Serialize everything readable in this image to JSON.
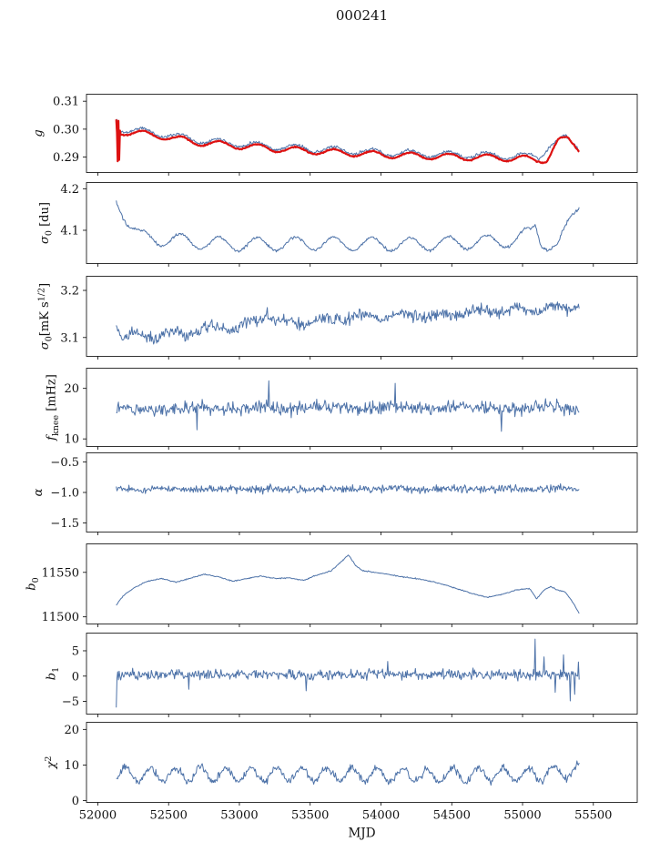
{
  "chart_data": {
    "type": "line",
    "title": "000241",
    "xlabel": "MJD",
    "xlim": [
      51920,
      55810
    ],
    "xticks": [
      52000,
      52500,
      53000,
      53500,
      54000,
      54500,
      55000,
      55500
    ],
    "xtick_labels": [
      "52000",
      "52500",
      "53000",
      "53500",
      "54000",
      "54500",
      "55000",
      "55500"
    ],
    "x_range": [
      52130,
      55400
    ],
    "n_points": 620,
    "colors": {
      "data_line": "#4d72a8",
      "fit_line": "#dd1111",
      "axes": "#000000"
    },
    "panels": [
      {
        "id": "g",
        "ylabel_segments": [
          {
            "t": "g",
            "style": "i"
          }
        ],
        "ylim": [
          0.2845,
          0.3125
        ],
        "yticks": [
          0.29,
          0.3,
          0.31
        ],
        "ytick_labels": [
          "0.29",
          "0.30",
          "0.31"
        ],
        "series": [
          {
            "name": "g-data",
            "color": "#4d72a8",
            "width": 1,
            "noise": 0.00055,
            "seed": 11,
            "anchors": [
              [
                52130,
                0.3005
              ],
              [
                52200,
                0.2998
              ],
              [
                52400,
                0.2988
              ],
              [
                52700,
                0.2962
              ],
              [
                53000,
                0.2948
              ],
              [
                53300,
                0.2936
              ],
              [
                53600,
                0.2927
              ],
              [
                53900,
                0.2919
              ],
              [
                54200,
                0.2913
              ],
              [
                54500,
                0.2909
              ],
              [
                54800,
                0.2906
              ],
              [
                55000,
                0.2903
              ],
              [
                55120,
                0.2903
              ],
              [
                55200,
                0.2946
              ],
              [
                55300,
                0.2968
              ],
              [
                55400,
                0.2935
              ]
            ],
            "osc": {
              "amp": 0.0011,
              "period": 270,
              "phase": 0.5
            },
            "spikes": [
              [
                52133,
                0.3035
              ]
            ]
          },
          {
            "name": "g-fit",
            "color": "#dd1111",
            "width": 2.2,
            "noise": 0.0002,
            "seed": 21,
            "anchors": [
              [
                52130,
                0.2992
              ],
              [
                52200,
                0.2989
              ],
              [
                52400,
                0.2979
              ],
              [
                52700,
                0.2953
              ],
              [
                53000,
                0.294
              ],
              [
                53300,
                0.2928
              ],
              [
                53600,
                0.2919
              ],
              [
                53900,
                0.2911
              ],
              [
                54200,
                0.2905
              ],
              [
                54500,
                0.2901
              ],
              [
                54800,
                0.2898
              ],
              [
                55000,
                0.2895
              ],
              [
                55100,
                0.2888
              ],
              [
                55170,
                0.2893
              ],
              [
                55250,
                0.2958
              ],
              [
                55320,
                0.2962
              ],
              [
                55400,
                0.2928
              ]
            ],
            "osc": {
              "amp": 0.0011,
              "period": 270,
              "phase": 0.4
            },
            "spikes": [
              [
                52131,
                0.3035
              ],
              [
                52138,
                0.2885
              ],
              [
                52145,
                0.303
              ],
              [
                52152,
                0.289
              ],
              [
                52159,
                0.2995
              ]
            ]
          }
        ]
      },
      {
        "id": "sigma0-du",
        "ylabel_segments": [
          {
            "t": "σ",
            "style": "i"
          },
          {
            "t": "0",
            "style": "sub"
          },
          {
            "t": " [du]"
          }
        ],
        "ylim": [
          4.02,
          4.215
        ],
        "yticks": [
          4.1,
          4.2
        ],
        "ytick_labels": [
          "4.1",
          "4.2"
        ],
        "series": [
          {
            "name": "sigma0-du",
            "color": "#4d72a8",
            "width": 1,
            "noise": 0.0035,
            "seed": 31,
            "anchors": [
              [
                52130,
                4.175
              ],
              [
                52170,
                4.15
              ],
              [
                52230,
                4.11
              ],
              [
                52300,
                4.085
              ],
              [
                52400,
                4.08
              ],
              [
                52550,
                4.077
              ],
              [
                52750,
                4.07
              ],
              [
                53000,
                4.066
              ],
              [
                53300,
                4.067
              ],
              [
                53600,
                4.068
              ],
              [
                53900,
                4.067
              ],
              [
                54200,
                4.066
              ],
              [
                54500,
                4.069
              ],
              [
                54800,
                4.073
              ],
              [
                54950,
                4.076
              ],
              [
                55060,
                4.095
              ],
              [
                55090,
                4.115
              ],
              [
                55130,
                4.075
              ],
              [
                55200,
                4.06
              ],
              [
                55250,
                4.058
              ],
              [
                55300,
                4.095
              ],
              [
                55340,
                4.13
              ],
              [
                55400,
                4.168
              ]
            ],
            "osc": {
              "amp": 0.016,
              "period": 270,
              "phase": 0.5
            },
            "spikes": []
          }
        ]
      },
      {
        "id": "sigma0-mks",
        "ylabel_segments": [
          {
            "t": "σ",
            "style": "i"
          },
          {
            "t": "0",
            "style": "sub"
          },
          {
            "t": "[mK s"
          },
          {
            "t": "1/2",
            "style": "sup"
          },
          {
            "t": "]"
          }
        ],
        "ylim": [
          3.06,
          3.23
        ],
        "yticks": [
          3.1,
          3.2
        ],
        "ytick_labels": [
          "3.1",
          "3.2"
        ],
        "series": [
          {
            "name": "sigma0-mks",
            "color": "#4d72a8",
            "width": 1,
            "noise": 0.013,
            "seed": 41,
            "anchors": [
              [
                52130,
                3.125
              ],
              [
                52180,
                3.1
              ],
              [
                52250,
                3.105
              ],
              [
                52400,
                3.103
              ],
              [
                52600,
                3.11
              ],
              [
                52800,
                3.118
              ],
              [
                53000,
                3.122
              ],
              [
                53150,
                3.14
              ],
              [
                53200,
                3.155
              ],
              [
                53250,
                3.135
              ],
              [
                53400,
                3.128
              ],
              [
                53600,
                3.138
              ],
              [
                53800,
                3.142
              ],
              [
                54000,
                3.145
              ],
              [
                54200,
                3.148
              ],
              [
                54400,
                3.147
              ],
              [
                54600,
                3.152
              ],
              [
                54800,
                3.158
              ],
              [
                55000,
                3.158
              ],
              [
                55200,
                3.162
              ],
              [
                55400,
                3.168
              ]
            ],
            "osc": {
              "amp": 0.006,
              "period": 270,
              "phase": 2.0
            },
            "spikes": []
          }
        ]
      },
      {
        "id": "fknee",
        "ylabel_segments": [
          {
            "t": "f",
            "style": "i"
          },
          {
            "t": "knee",
            "style": "sub"
          },
          {
            "t": " [mHz]"
          }
        ],
        "ylim": [
          8.5,
          24
        ],
        "yticks": [
          10,
          20
        ],
        "ytick_labels": [
          "10",
          "20"
        ],
        "series": [
          {
            "name": "fknee",
            "color": "#4d72a8",
            "width": 1,
            "noise": 1.3,
            "seed": 51,
            "anchors": [
              [
                52130,
                16.0
              ],
              [
                53000,
                16.1
              ],
              [
                54000,
                16.2
              ],
              [
                55400,
                16.1
              ]
            ],
            "osc": {
              "amp": 0.3,
              "period": 500,
              "phase": 0
            },
            "spikes": [
              [
                52700,
                11.8
              ],
              [
                53210,
                21.5
              ],
              [
                54100,
                21.0
              ],
              [
                54850,
                11.5
              ]
            ]
          }
        ]
      },
      {
        "id": "alpha",
        "ylabel_segments": [
          {
            "t": "α",
            "style": "i"
          }
        ],
        "ylim": [
          -1.65,
          -0.35
        ],
        "yticks": [
          -1.5,
          -1.0,
          -0.5
        ],
        "ytick_labels": [
          "−1.5",
          "−1.0",
          "−0.5"
        ],
        "series": [
          {
            "name": "alpha",
            "color": "#4d72a8",
            "width": 1,
            "noise": 0.06,
            "seed": 61,
            "anchors": [
              [
                52130,
                -0.95
              ],
              [
                55400,
                -0.94
              ]
            ],
            "osc": {
              "amp": 0.01,
              "period": 400,
              "phase": 0
            },
            "spikes": []
          }
        ]
      },
      {
        "id": "b0",
        "ylabel_segments": [
          {
            "t": "b",
            "style": "i"
          },
          {
            "t": "0",
            "style": "sub"
          }
        ],
        "ylim": [
          11492,
          11582
        ],
        "yticks": [
          11500,
          11550
        ],
        "ytick_labels": [
          "11500",
          "11550"
        ],
        "series": [
          {
            "name": "b0",
            "color": "#4d72a8",
            "width": 1,
            "noise": 0.6,
            "seed": 71,
            "anchors": [
              [
                52130,
                11513
              ],
              [
                52180,
                11524
              ],
              [
                52250,
                11532
              ],
              [
                52350,
                11540
              ],
              [
                52450,
                11543
              ],
              [
                52550,
                11539
              ],
              [
                52650,
                11543
              ],
              [
                52750,
                11548
              ],
              [
                52850,
                11545
              ],
              [
                52950,
                11540
              ],
              [
                53050,
                11543
              ],
              [
                53150,
                11546
              ],
              [
                53250,
                11543
              ],
              [
                53350,
                11544
              ],
              [
                53450,
                11541
              ],
              [
                53550,
                11547
              ],
              [
                53650,
                11552
              ],
              [
                53720,
                11562
              ],
              [
                53770,
                11570
              ],
              [
                53820,
                11558
              ],
              [
                53870,
                11552
              ],
              [
                53950,
                11550
              ],
              [
                54050,
                11548
              ],
              [
                54150,
                11545
              ],
              [
                54250,
                11543
              ],
              [
                54350,
                11540
              ],
              [
                54450,
                11536
              ],
              [
                54550,
                11531
              ],
              [
                54650,
                11526
              ],
              [
                54750,
                11522
              ],
              [
                54850,
                11525
              ],
              [
                54950,
                11530
              ],
              [
                55050,
                11532
              ],
              [
                55100,
                11520
              ],
              [
                55150,
                11530
              ],
              [
                55200,
                11534
              ],
              [
                55250,
                11530
              ],
              [
                55300,
                11528
              ],
              [
                55340,
                11520
              ],
              [
                55370,
                11512
              ],
              [
                55400,
                11504
              ]
            ],
            "osc": {
              "amp": 0,
              "period": 1000,
              "phase": 0
            },
            "spikes": []
          }
        ]
      },
      {
        "id": "b1",
        "ylabel_segments": [
          {
            "t": "b",
            "style": "i"
          },
          {
            "t": "1",
            "style": "sub"
          }
        ],
        "ylim": [
          -7.5,
          8.5
        ],
        "yticks": [
          -5,
          0,
          5
        ],
        "ytick_labels": [
          "−5",
          "0",
          "5"
        ],
        "series": [
          {
            "name": "b1",
            "color": "#4d72a8",
            "width": 1,
            "noise": 1.0,
            "seed": 81,
            "anchors": [
              [
                52130,
                0.3
              ],
              [
                55400,
                0.3
              ]
            ],
            "osc": {
              "amp": 0,
              "period": 1000,
              "phase": 0
            },
            "spikes": [
              [
                52131,
                -6.2
              ],
              [
                52640,
                -2.6
              ],
              [
                53470,
                -2.9
              ],
              [
                54050,
                2.9
              ],
              [
                55090,
                7.3
              ],
              [
                55150,
                3.8
              ],
              [
                55230,
                -3.2
              ],
              [
                55290,
                4.2
              ],
              [
                55335,
                -4.9
              ],
              [
                55370,
                -3.6
              ],
              [
                55395,
                2.8
              ]
            ]
          }
        ]
      },
      {
        "id": "chi2",
        "ylabel_segments": [
          {
            "t": "χ",
            "style": "i"
          },
          {
            "t": "2",
            "style": "sup"
          }
        ],
        "ylim": [
          -0.5,
          22
        ],
        "yticks": [
          0,
          10,
          20
        ],
        "ytick_labels": [
          "0",
          "10",
          "20"
        ],
        "series": [
          {
            "name": "chi2",
            "color": "#4d72a8",
            "width": 1,
            "noise": 1.05,
            "seed": 91,
            "anchors": [
              [
                52130,
                7.2
              ],
              [
                53000,
                7.4
              ],
              [
                54000,
                7.3
              ],
              [
                55000,
                7.2
              ],
              [
                55400,
                8.5
              ]
            ],
            "osc": {
              "amp": 1.9,
              "period": 178,
              "phase": 1.0
            },
            "spikes": []
          }
        ]
      }
    ]
  }
}
